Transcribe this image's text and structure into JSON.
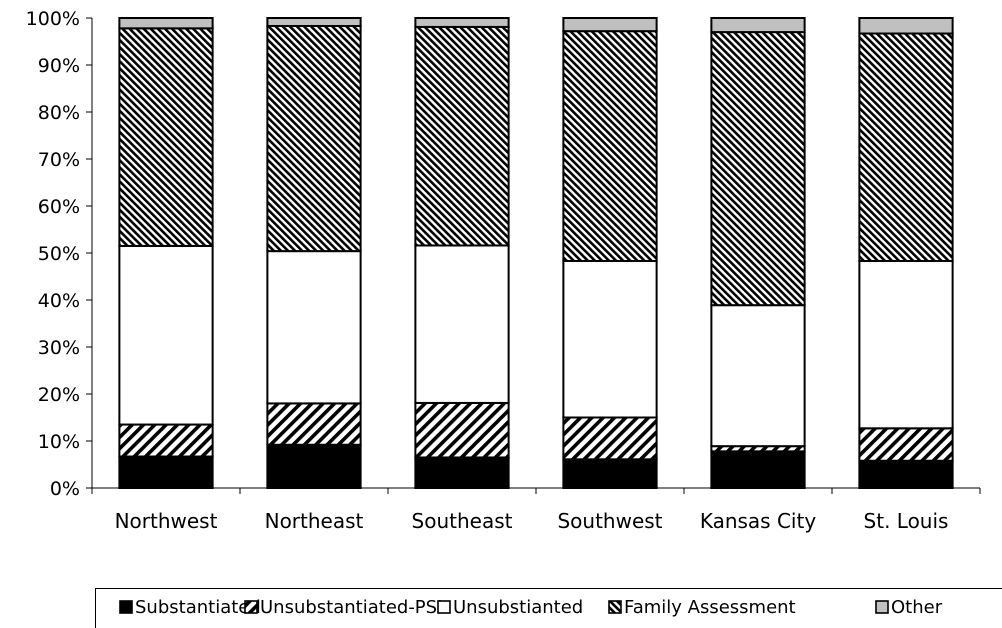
{
  "chart_data": {
    "type": "bar",
    "stacked": true,
    "percent": true,
    "categories": [
      "Northwest",
      "Northeast",
      "Southeast",
      "Southwest",
      "Kansas City",
      "St. Louis"
    ],
    "series": [
      {
        "name": "Substantiated",
        "values": [
          6.7,
          9.2,
          6.5,
          6.1,
          7.8,
          5.8
        ],
        "pattern": "solid-black"
      },
      {
        "name": "Unsubstantiated-PSI",
        "values": [
          6.8,
          8.8,
          11.6,
          8.9,
          1.1,
          6.9
        ],
        "pattern": "wide-diagonal-hatch"
      },
      {
        "name": "Unsubstianted",
        "values": [
          38.0,
          32.4,
          33.5,
          33.3,
          30.0,
          35.6
        ],
        "pattern": "white"
      },
      {
        "name": "Family Assessment",
        "values": [
          46.3,
          47.9,
          46.5,
          48.9,
          58.1,
          48.4
        ],
        "pattern": "dense-diagonal-hatch"
      },
      {
        "name": "Other",
        "values": [
          2.2,
          1.7,
          1.9,
          2.8,
          3.0,
          3.3
        ],
        "pattern": "light-gray"
      }
    ],
    "ylim": [
      0,
      100
    ],
    "yticks": [
      "0%",
      "10%",
      "20%",
      "30%",
      "40%",
      "50%",
      "60%",
      "70%",
      "80%",
      "90%",
      "100%"
    ],
    "grid": false,
    "legend_position": "bottom",
    "colors": {
      "solid": "#000000",
      "white": "#ffffff",
      "gray": "#c0c0c0",
      "outline": "#000000"
    }
  }
}
